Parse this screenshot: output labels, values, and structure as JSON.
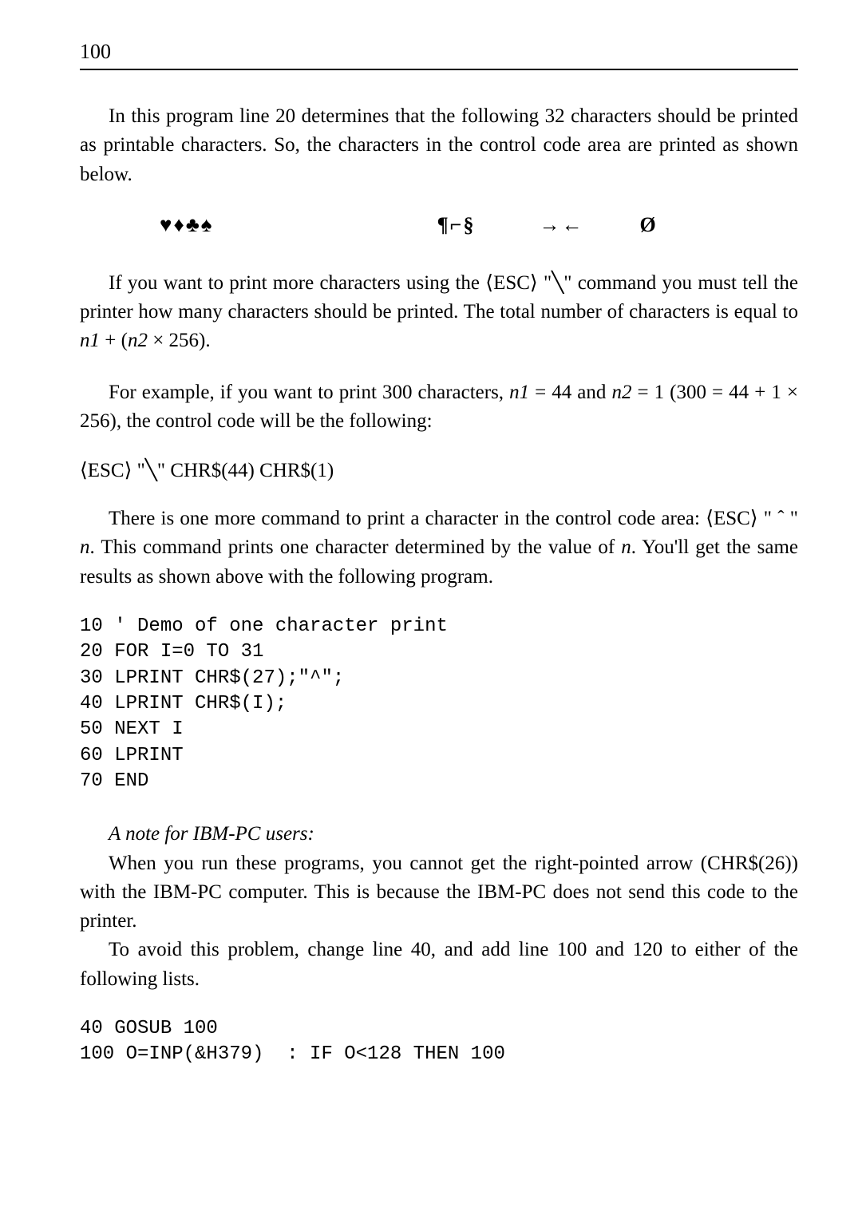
{
  "page_number": "100",
  "para1": "In this program line 20 determines that the following 32 characters should be printed as printable characters. So, the characters in the control code area are printed as shown below.",
  "symbols": {
    "group1": "♥♦♣♠",
    "group2": "¶⌐§",
    "group3": "→←",
    "group4": "Ø"
  },
  "para2_a": "If you want to print more characters using the ⟨ESC⟩ \"╲\" command you must tell the printer how many characters should be printed. The total number of characters is equal to ",
  "para2_n1": "n1",
  "para2_b": " + (",
  "para2_n2": "n2",
  "para2_c": " × 256).",
  "para3_a": "For example, if you want to print 300 characters, ",
  "para3_n1": "n1",
  "para3_b": " = 44 and ",
  "para3_n2": "n2",
  "para3_c": " = 1 (300 = 44 + 1 × 256), the control code will be the following:",
  "esc_line": "⟨ESC⟩ \"╲\" CHR$(44) CHR$(1)",
  "para4_a": "There is one more command to print a character in the control code area: ⟨ESC⟩ \" ˆ \" ",
  "para4_n": "n",
  "para4_b": ". This command prints one character determined by the value of ",
  "para4_n2": "n",
  "para4_c": ". You'll get the same results as shown above with the following program.",
  "code1": "10 ' Demo of one character print\n20 FOR I=0 TO 31\n30 LPRINT CHR$(27);\"^\";\n40 LPRINT CHR$(I);\n50 NEXT I\n60 LPRINT\n70 END",
  "note_title": "A note for IBM-PC users:",
  "para5": "When you run these programs, you cannot get the right-pointed arrow (CHR$(26)) with the IBM-PC computer. This is because the IBM-PC does not send this code to the printer.",
  "para6": "To avoid this problem, change line 40, and add line 100 and 120 to either of the following lists.",
  "code2": "40 GOSUB 100\n100 O=INP(&H379)  : IF O<128 THEN 100"
}
